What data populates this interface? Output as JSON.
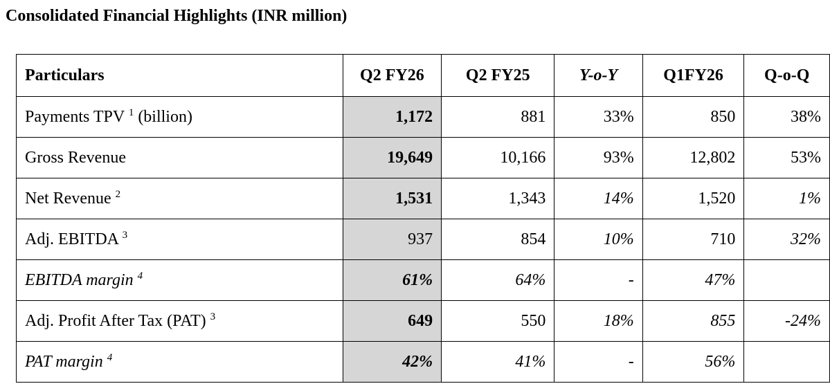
{
  "title": "Consolidated Financial Highlights (INR million)",
  "headers": [
    "Particulars",
    "Q2 FY26",
    "Q2 FY25",
    "Y-o-Y",
    "Q1FY26",
    "Q-o-Q"
  ],
  "rows": [
    {
      "label": "Payments TPV",
      "sup": "1",
      "suffix": " (billion)",
      "q2fy26": "1,172",
      "q2fy25": "881",
      "yoy": "33%",
      "q1fy26": "850",
      "qoq": "38%"
    },
    {
      "label": "Gross Revenue",
      "sup": "",
      "suffix": "",
      "q2fy26": "19,649",
      "q2fy25": "10,166",
      "yoy": "93%",
      "q1fy26": "12,802",
      "qoq": "53%"
    },
    {
      "label": "Net Revenue",
      "sup": "2",
      "suffix": "",
      "q2fy26": "1,531",
      "q2fy25": "1,343",
      "yoy": "14%",
      "q1fy26": "1,520",
      "qoq": "1%"
    },
    {
      "label": "Adj. EBITDA",
      "sup": "3",
      "suffix": "",
      "q2fy26": "937",
      "q2fy25": "854",
      "yoy": "10%",
      "q1fy26": "710",
      "qoq": "32%"
    },
    {
      "label": "EBITDA margin",
      "sup": "4",
      "suffix": "",
      "q2fy26": "61%",
      "q2fy25": "64%",
      "yoy": "-",
      "q1fy26": "47%",
      "qoq": ""
    },
    {
      "label": "Adj. Profit After Tax (PAT)",
      "sup": "3",
      "suffix": "",
      "q2fy26": "649",
      "q2fy25": "550",
      "yoy": "18%",
      "q1fy26": "855",
      "qoq": "-24%"
    },
    {
      "label": "PAT margin",
      "sup": "4",
      "suffix": "",
      "q2fy26": "42%",
      "q2fy25": "41%",
      "yoy": "-",
      "q1fy26": "56%",
      "qoq": ""
    }
  ]
}
